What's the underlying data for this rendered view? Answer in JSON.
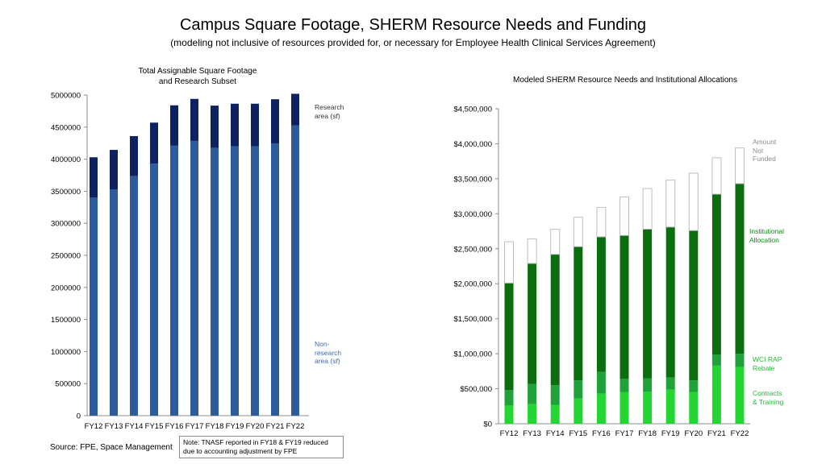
{
  "header": {
    "title": "Campus Square Footage, SHERM Resource Needs and Funding",
    "subtitle": "(modeling not inclusive of resources provided for, or necessary for Employee Health Clinical Services Agreement)"
  },
  "colors": {
    "non_research": "#2e5a9e",
    "research": "#0d2361",
    "institutional": "#0a6d0e",
    "wci": "#21a13a",
    "contracts": "#23d633",
    "not_funded_stroke": "#bfbfbf"
  },
  "chart_data": [
    {
      "type": "bar",
      "stacked": true,
      "title_line1": "Total Assignable Square Footage",
      "title_line2": "and Research Subset",
      "categories": [
        "FY12",
        "FY13",
        "FY14",
        "FY15",
        "FY16",
        "FY17",
        "FY18",
        "FY19",
        "FY20",
        "FY21",
        "FY22"
      ],
      "series": [
        {
          "name_lines": [
            "Non-",
            "research",
            "area (sf)"
          ],
          "color": "#2e5a9e",
          "values": [
            3400000,
            3530000,
            3735000,
            3930000,
            4210000,
            4285000,
            4175000,
            4200000,
            4200000,
            4245000,
            4525000
          ]
        },
        {
          "name_lines": [
            "Research",
            "area (sf)"
          ],
          "color": "#0d2361",
          "values": [
            630000,
            615000,
            625000,
            640000,
            630000,
            655000,
            660000,
            665000,
            665000,
            690000,
            495000
          ]
        }
      ],
      "ylim": [
        0,
        5000000
      ],
      "yticks": [
        "0",
        "500000",
        "1000000",
        "1500000",
        "2000000",
        "2500000",
        "3000000",
        "3500000",
        "4000000",
        "4500000",
        "5000000"
      ],
      "grid": false
    },
    {
      "type": "bar",
      "stacked": true,
      "title": "Modeled SHERM Resource Needs and Institutional Allocations",
      "categories": [
        "FY12",
        "FY13",
        "FY14",
        "FY15",
        "FY16",
        "FY17",
        "FY18",
        "FY19",
        "FY20",
        "FY21",
        "FY22"
      ],
      "series": [
        {
          "name_lines": [
            "Contracts",
            "& Training"
          ],
          "color": "#23d633",
          "values": [
            260000,
            280000,
            270000,
            360000,
            430000,
            450000,
            460000,
            490000,
            450000,
            830000,
            810000
          ]
        },
        {
          "name_lines": [
            "WCI RAP",
            "Rebate"
          ],
          "color": "#21a13a",
          "values": [
            220000,
            290000,
            280000,
            260000,
            310000,
            190000,
            190000,
            170000,
            170000,
            160000,
            190000
          ]
        },
        {
          "name_lines": [
            "Institutional",
            "Allocation"
          ],
          "color": "#0a6d0e",
          "values": [
            1530000,
            1720000,
            1870000,
            1910000,
            1930000,
            2050000,
            2130000,
            2150000,
            2140000,
            2290000,
            2430000
          ]
        },
        {
          "name_lines": [
            "Amount",
            "Not",
            "Funded"
          ],
          "color": "#ffffff",
          "values": [
            590000,
            350000,
            360000,
            420000,
            420000,
            550000,
            580000,
            670000,
            820000,
            520000,
            510000
          ]
        }
      ],
      "ylim": [
        0,
        4500000
      ],
      "yticks": [
        "$0",
        "$500,000",
        "$1,000,000",
        "$1,500,000",
        "$2,000,000",
        "$2,500,000",
        "$3,000,000",
        "$3,500,000",
        "$4,000,000",
        "$4,500,000"
      ],
      "grid": false
    }
  ],
  "footer": {
    "source": "Source: FPE, Space Management",
    "note": "Note: TNASF reported in FY18 & FY19 reduced due to accounting adjustment by FPE"
  }
}
